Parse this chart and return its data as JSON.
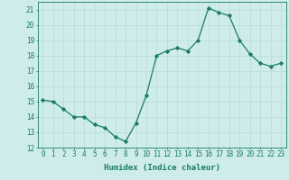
{
  "x": [
    0,
    1,
    2,
    3,
    4,
    5,
    6,
    7,
    8,
    9,
    10,
    11,
    12,
    13,
    14,
    15,
    16,
    17,
    18,
    19,
    20,
    21,
    22,
    23
  ],
  "y": [
    15.1,
    15.0,
    14.5,
    14.0,
    14.0,
    13.5,
    13.3,
    12.7,
    12.4,
    13.6,
    15.4,
    18.0,
    18.3,
    18.5,
    18.3,
    19.0,
    21.1,
    20.8,
    20.6,
    19.0,
    18.1,
    17.5,
    17.3,
    17.5
  ],
  "line_color": "#1a7a6a",
  "marker": "D",
  "marker_size": 2.2,
  "bg_color": "#ceecea",
  "grid_color": "#b8dbd8",
  "xlabel": "Humidex (Indice chaleur)",
  "ylabel": "",
  "ylim": [
    12,
    21.5
  ],
  "xlim": [
    -0.5,
    23.5
  ],
  "yticks": [
    12,
    13,
    14,
    15,
    16,
    17,
    18,
    19,
    20,
    21
  ],
  "xticks": [
    0,
    1,
    2,
    3,
    4,
    5,
    6,
    7,
    8,
    9,
    10,
    11,
    12,
    13,
    14,
    15,
    16,
    17,
    18,
    19,
    20,
    21,
    22,
    23
  ],
  "tick_color": "#1a7a6a",
  "label_fontsize": 6.5,
  "tick_fontsize": 5.5
}
